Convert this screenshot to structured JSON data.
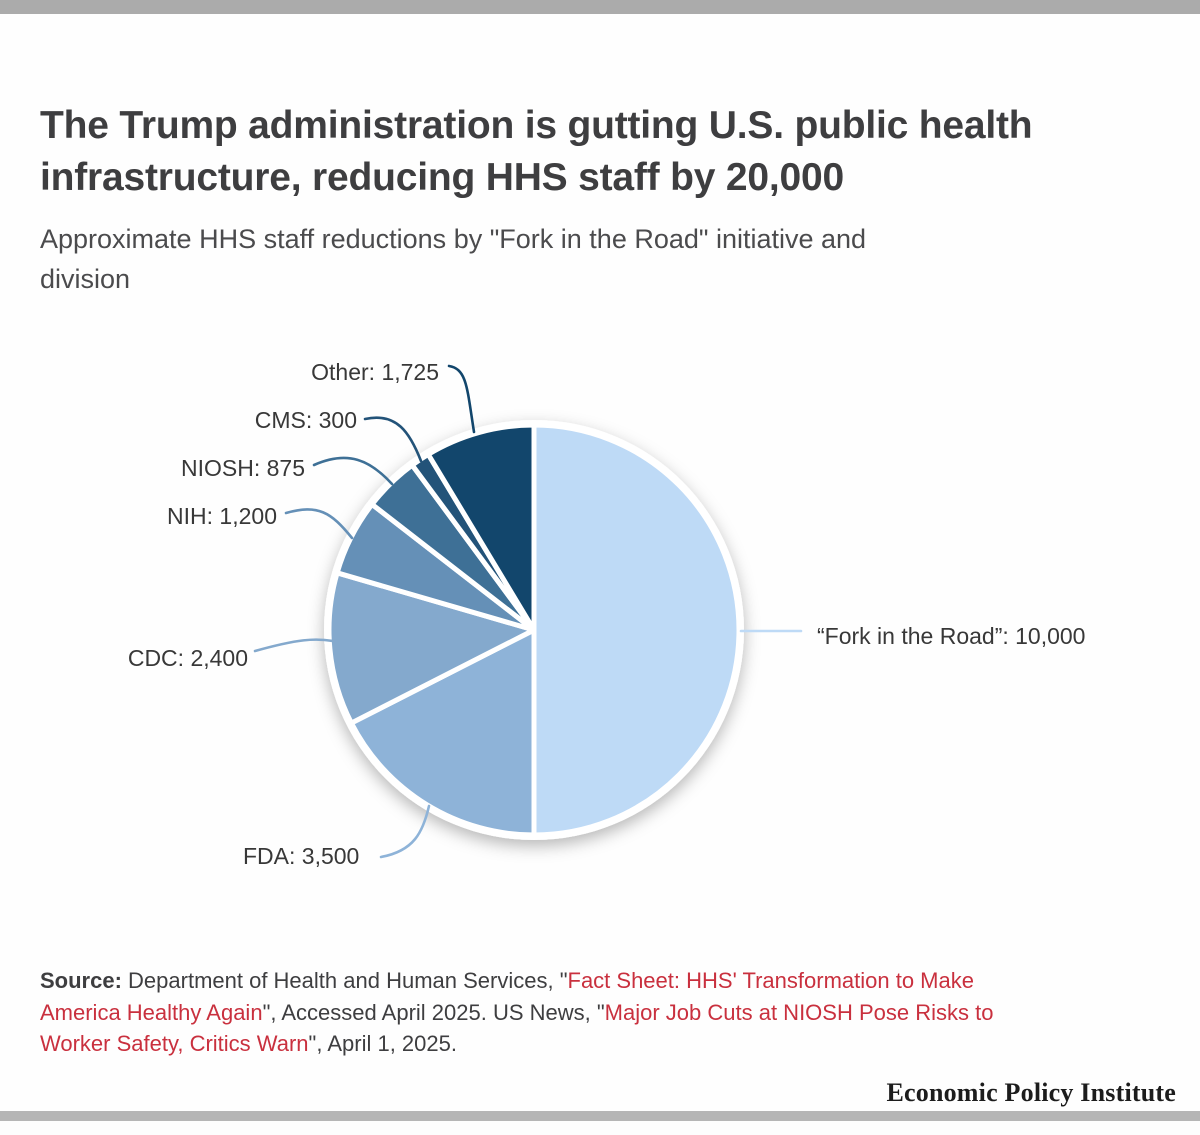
{
  "page": {
    "title": "The Trump administration is gutting U.S. public health\ninfrastructure, reducing HHS staff by 20,000",
    "subtitle": "Approximate HHS staff reductions by \"Fork in the Road\" initiative and\ndivision",
    "footer_brand": "Economic Policy Institute"
  },
  "chart_data": {
    "type": "pie",
    "title": "Approximate HHS staff reductions by \"Fork in the Road\" initiative and division",
    "total": 20000,
    "start_angle_deg": 0,
    "direction": "clockwise",
    "legend_position": "callout-labels",
    "slices": [
      {
        "id": "fork",
        "name": "Fork in the Road",
        "label": "“Fork in the Road”: 10,000",
        "value": 10000,
        "color": "#bedaf6"
      },
      {
        "id": "fda",
        "name": "FDA",
        "label": "FDA: 3,500",
        "value": 3500,
        "color": "#8eb3d8"
      },
      {
        "id": "cdc",
        "name": "CDC",
        "label": "CDC: 2,400",
        "value": 2400,
        "color": "#84a9cd"
      },
      {
        "id": "nih",
        "name": "NIH",
        "label": "NIH: 1,200",
        "value": 1200,
        "color": "#6590b7"
      },
      {
        "id": "niosh",
        "name": "NIOSH",
        "label": "NIOSH: 875",
        "value": 875,
        "color": "#3e7096"
      },
      {
        "id": "cms",
        "name": "CMS",
        "label": "CMS: 300",
        "value": 300,
        "color": "#235379"
      },
      {
        "id": "other",
        "name": "Other",
        "label": "Other: 1,725",
        "value": 1725,
        "color": "#12466c"
      }
    ]
  },
  "source": {
    "link_color": "#c9303e",
    "lines": [
      [
        {
          "t": "Source:",
          "style": "bold"
        },
        {
          "t": " Department of Health and Human Services, \"",
          "style": "plain"
        },
        {
          "t": "Fact Sheet: HHS' Transformation to Make",
          "style": "link"
        }
      ],
      [
        {
          "t": "America Healthy Again",
          "style": "link"
        },
        {
          "t": "\", Accessed April 2025. US News, \"",
          "style": "plain"
        },
        {
          "t": "Major Job Cuts at NIOSH Pose Risks to",
          "style": "link"
        }
      ],
      [
        {
          "t": "Worker Safety, Critics Warn",
          "style": "link"
        },
        {
          "t": "\", April 1, 2025.",
          "style": "plain"
        }
      ]
    ]
  }
}
